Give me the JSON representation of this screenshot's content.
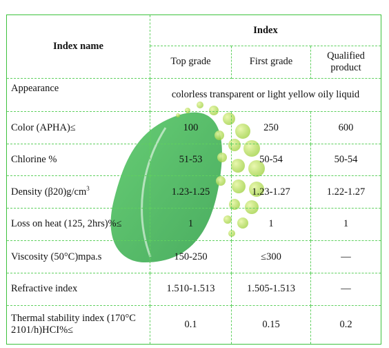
{
  "header": {
    "index_name": "Index name",
    "index": "Index",
    "grades": [
      "Top grade",
      "First grade",
      "Qualified product"
    ]
  },
  "appearance": {
    "name": "Appearance",
    "value": "colorless transparent or light yellow oily liquid"
  },
  "rows": [
    {
      "name": "Color (APHA)≤",
      "top": "100",
      "first": "250",
      "qualified": "600"
    },
    {
      "name": "Chlorine %",
      "top": "51-53",
      "first": "50-54",
      "qualified": "50-54"
    },
    {
      "name": "Density (β20)g/cm",
      "name_sup": "3",
      "top": "1.23-1.25",
      "first": "1.23-1.27",
      "qualified": "1.22-1.27"
    },
    {
      "name": "Loss on heat (125, 2hrs)%≤",
      "top": "1",
      "first": "1",
      "qualified": "1"
    },
    {
      "name": "Viscosity (50°C)mpa.s",
      "top": "150-250",
      "first": "≤300",
      "qualified": "—"
    },
    {
      "name": "Refractive index",
      "top": "1.510-1.513",
      "first": "1.505-1.513",
      "qualified": "—"
    },
    {
      "name": "Thermal stability index (170°C 2101/h)HCI%≤",
      "top": "0.1",
      "first": "0.15",
      "qualified": "0.2"
    }
  ],
  "colors": {
    "border": "#3cc23c",
    "watermark_leaf": "#3fb94f",
    "watermark_dots": "#a6d94a"
  }
}
